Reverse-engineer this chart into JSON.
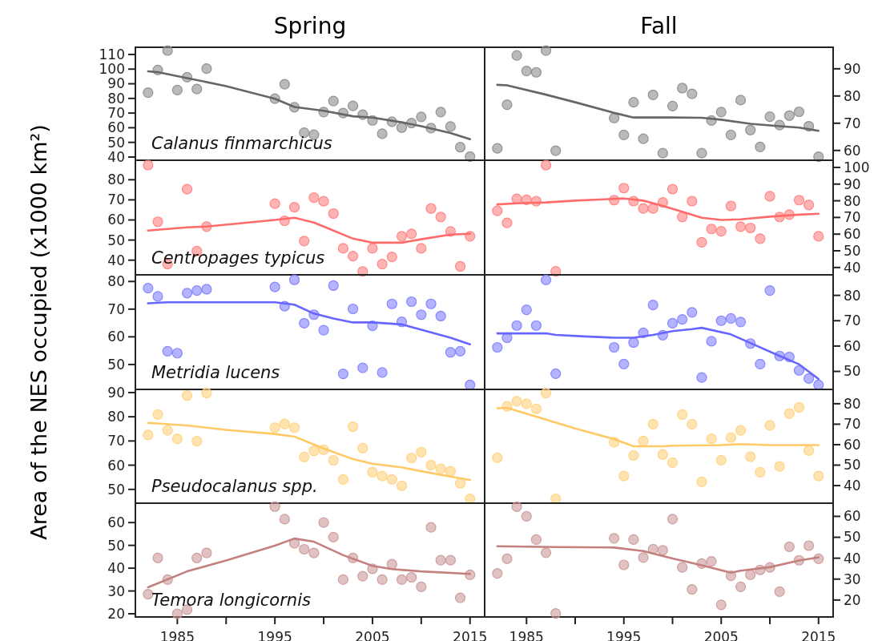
{
  "chart_data": [
    {
      "type": "scatter",
      "title": "Spring",
      "annotations": [
        "Calanus finmarchicus"
      ],
      "xlim": [
        1980.7,
        2016.5
      ],
      "ylim": [
        37.8,
        114.9
      ],
      "yticks": [
        40,
        50,
        60,
        70,
        80,
        90,
        100,
        110
      ],
      "tick_labels": "y",
      "marker": "circle",
      "grid": false,
      "series": [
        {
          "color": "#8c8c8c",
          "x": [
            1982,
            1983,
            1984,
            1985,
            1986,
            1987,
            1988,
            1995,
            1996,
            1997,
            1998,
            1999,
            2000,
            2001,
            2002,
            2003,
            2004,
            2005,
            2006,
            2007,
            2008,
            2009,
            2010,
            2011,
            2012,
            2013,
            2014,
            2015
          ],
          "values": [
            83.9,
            99.4,
            112.7,
            85.7,
            94.5,
            86.4,
            100.3,
            79.8,
            89.7,
            74.0,
            56.6,
            55.2,
            70.7,
            78.2,
            70.0,
            74.9,
            68.9,
            65.0,
            55.9,
            64.1,
            60.1,
            63.2,
            67.4,
            59.7,
            70.7,
            60.8,
            46.7,
            40.3
          ]
        },
        {
          "type": "line",
          "marker": "none",
          "color": "#666666",
          "x": [
            1982,
            1983,
            1986,
            1990,
            1995,
            1997,
            2000,
            2003,
            2005,
            2008,
            2010,
            2013,
            2015
          ],
          "values": [
            98.5,
            97.9,
            93.9,
            88.4,
            79.8,
            74.2,
            71.6,
            67.8,
            66.9,
            63.7,
            61.0,
            56.4,
            52.2
          ]
        }
      ]
    },
    {
      "type": "scatter",
      "title": "Fall",
      "xlim": [
        1980.7,
        2016.5
      ],
      "ylim": [
        56.4,
        97.9
      ],
      "yticks": [
        60,
        70,
        80,
        90
      ],
      "tick_labels": "y",
      "marker": "circle",
      "grid": false,
      "series": [
        {
          "color": "#8c8c8c",
          "x": [
            1982,
            1983,
            1984,
            1985,
            1986,
            1987,
            1988,
            1994,
            1995,
            1996,
            1997,
            1998,
            1999,
            2000,
            2001,
            2002,
            2003,
            2004,
            2005,
            2006,
            2007,
            2008,
            2009,
            2010,
            2011,
            2012,
            2013,
            2014,
            2015
          ],
          "values": [
            60.8,
            76.8,
            94.9,
            89.2,
            88.7,
            96.7,
            59.9,
            71.9,
            65.7,
            77.7,
            64.3,
            80.4,
            59.0,
            76.3,
            82.9,
            80.8,
            59.0,
            71.0,
            74.1,
            65.7,
            78.5,
            67.5,
            61.3,
            72.4,
            69.3,
            72.8,
            74.2,
            68.9,
            57.7
          ]
        },
        {
          "type": "line",
          "marker": "none",
          "color": "#666666",
          "x": [
            1982,
            1983,
            1987,
            1990,
            1994,
            1996,
            2000,
            2003,
            2005,
            2008,
            2011,
            2013,
            2015
          ],
          "values": [
            84.1,
            83.9,
            80.5,
            77.7,
            73.8,
            72.1,
            72.1,
            72.0,
            71.3,
            69.8,
            68.9,
            68.4,
            67.2
          ]
        }
      ]
    },
    {
      "type": "scatter",
      "annotations": [
        "Centropages typicus"
      ],
      "xlim": [
        1980.7,
        2016.5
      ],
      "ylim": [
        32.7,
        89.7
      ],
      "yticks": [
        40,
        50,
        60,
        70,
        80
      ],
      "tick_labels": "y",
      "marker": "circle",
      "grid": false,
      "series": [
        {
          "color": "#ff8080",
          "x": [
            1982,
            1983,
            1984,
            1986,
            1987,
            1988,
            1995,
            1996,
            1997,
            1998,
            1999,
            2000,
            2001,
            2002,
            2003,
            2004,
            2005,
            2006,
            2007,
            2008,
            2009,
            2010,
            2011,
            2012,
            2013,
            2014,
            2015
          ],
          "values": [
            87.3,
            59.1,
            38.0,
            75.3,
            44.5,
            56.7,
            68.1,
            59.6,
            66.3,
            49.5,
            71.1,
            69.3,
            63.2,
            45.9,
            42.0,
            34.4,
            45.9,
            38.0,
            41.6,
            51.9,
            53.1,
            45.9,
            65.7,
            61.5,
            54.3,
            36.9,
            51.9
          ]
        },
        {
          "type": "line",
          "marker": "none",
          "color": "#ff6b6b",
          "x": [
            1982,
            1986,
            1988,
            1995,
            1997,
            1999,
            2001,
            2003,
            2005,
            2008,
            2010,
            2013,
            2015
          ],
          "values": [
            54.7,
            56.3,
            56.7,
            60.0,
            61.1,
            58.7,
            54.7,
            50.7,
            48.7,
            48.7,
            50.4,
            52.7,
            53.1
          ]
        }
      ]
    },
    {
      "type": "scatter",
      "xlim": [
        1980.7,
        2016.5
      ],
      "ylim": [
        35.6,
        104.3
      ],
      "yticks": [
        40,
        50,
        60,
        70,
        80,
        90,
        100
      ],
      "tick_labels": "y",
      "marker": "circle",
      "grid": false,
      "series": [
        {
          "color": "#ff8080",
          "x": [
            1982,
            1983,
            1984,
            1985,
            1986,
            1987,
            1988,
            1994,
            1995,
            1996,
            1997,
            1998,
            1999,
            2000,
            2001,
            2002,
            2003,
            2004,
            2005,
            2006,
            2007,
            2008,
            2009,
            2010,
            2011,
            2012,
            2013,
            2014,
            2015
          ],
          "values": [
            74.0,
            66.8,
            81.2,
            80.6,
            79.8,
            101.4,
            37.7,
            80.4,
            87.6,
            79.8,
            75.4,
            75.4,
            79.0,
            87.0,
            70.3,
            79.8,
            55.1,
            63.1,
            61.7,
            76.9,
            64.5,
            63.7,
            57.3,
            82.7,
            70.3,
            71.7,
            80.4,
            77.5,
            58.7
          ]
        },
        {
          "type": "line",
          "marker": "none",
          "color": "#ff6b6b",
          "x": [
            1982,
            1984,
            1987,
            1990,
            1993,
            1995,
            1997,
            1999,
            2001,
            2003,
            2005,
            2007,
            2010,
            2013,
            2015
          ],
          "values": [
            77.8,
            78.5,
            79.0,
            80.1,
            80.9,
            81.4,
            80.1,
            76.9,
            73.4,
            69.8,
            68.5,
            68.9,
            70.5,
            71.7,
            72.2
          ]
        }
      ]
    },
    {
      "type": "scatter",
      "ylabel": "Area of the NES occupied  (x1000 km²)",
      "annotations": [
        "Metridia lucens"
      ],
      "xlim": [
        1980.7,
        2016.5
      ],
      "ylim": [
        41.0,
        82.4
      ],
      "yticks": [
        50,
        60,
        70,
        80
      ],
      "tick_labels": "y",
      "marker": "circle",
      "grid": false,
      "series": [
        {
          "color": "#8080ff",
          "x": [
            1982,
            1983,
            1984,
            1985,
            1986,
            1987,
            1988,
            1995,
            1996,
            1997,
            1998,
            1999,
            2000,
            2001,
            2002,
            2003,
            2004,
            2005,
            2006,
            2007,
            2008,
            2009,
            2010,
            2011,
            2012,
            2013,
            2014,
            2015
          ],
          "values": [
            77.6,
            74.6,
            54.8,
            54.1,
            75.8,
            76.7,
            77.2,
            78.0,
            71.1,
            80.6,
            64.9,
            68.0,
            62.4,
            78.5,
            46.6,
            70.1,
            48.8,
            64.0,
            47.1,
            71.9,
            65.4,
            72.7,
            68.0,
            71.9,
            67.5,
            54.4,
            54.8,
            42.6
          ]
        },
        {
          "type": "line",
          "marker": "none",
          "color": "#6666ff",
          "x": [
            1982,
            1984,
            1990,
            1995,
            1997,
            1999,
            2001,
            2003,
            2005,
            2008,
            2010,
            2013,
            2015
          ],
          "values": [
            72.1,
            72.5,
            72.5,
            72.5,
            71.6,
            68.4,
            66.6,
            65.2,
            65.2,
            64.5,
            62.6,
            59.7,
            57.3
          ]
        }
      ]
    },
    {
      "type": "scatter",
      "xlim": [
        1980.7,
        2016.5
      ],
      "ylim": [
        42.9,
        88.1
      ],
      "yticks": [
        50,
        60,
        70,
        80
      ],
      "tick_labels": "y",
      "marker": "circle",
      "grid": false,
      "series": [
        {
          "color": "#8080ff",
          "x": [
            1982,
            1983,
            1984,
            1985,
            1986,
            1987,
            1988,
            1994,
            1995,
            1996,
            1997,
            1998,
            1999,
            2000,
            2001,
            2002,
            2003,
            2004,
            2005,
            2006,
            2007,
            2008,
            2009,
            2010,
            2011,
            2012,
            2013,
            2014,
            2015
          ],
          "values": [
            59.5,
            63.3,
            68.1,
            74.3,
            68.1,
            86.1,
            49.1,
            59.5,
            52.9,
            61.4,
            65.2,
            76.2,
            64.3,
            69.0,
            70.5,
            73.3,
            47.6,
            61.9,
            70.0,
            70.9,
            69.5,
            61.0,
            52.9,
            81.9,
            56.1,
            55.7,
            50.4,
            47.2,
            44.7
          ]
        },
        {
          "type": "line",
          "marker": "none",
          "color": "#6666ff",
          "x": [
            1982,
            1987,
            1988,
            1991,
            1994,
            1996,
            1998,
            2000,
            2002,
            2003,
            2006,
            2008,
            2011,
            2013,
            2015
          ],
          "values": [
            65.0,
            65.0,
            64.4,
            63.8,
            63.3,
            63.3,
            64.4,
            65.9,
            66.7,
            67.2,
            64.6,
            61.2,
            56.1,
            52.8,
            47.0
          ]
        }
      ]
    },
    {
      "type": "scatter",
      "annotations": [
        "Pseudocalanus spp."
      ],
      "xlim": [
        1980.7,
        2016.5
      ],
      "ylim": [
        44.3,
        91.3
      ],
      "yticks": [
        50,
        60,
        70,
        80,
        90
      ],
      "tick_labels": "y",
      "marker": "circle",
      "grid": false,
      "series": [
        {
          "color": "#ffd27f",
          "x": [
            1982,
            1983,
            1984,
            1985,
            1986,
            1987,
            1988,
            1995,
            1996,
            1997,
            1998,
            1999,
            2000,
            2001,
            2002,
            2003,
            2004,
            2005,
            2006,
            2007,
            2008,
            2009,
            2010,
            2011,
            2012,
            2013,
            2014,
            2015
          ],
          "values": [
            72.5,
            80.9,
            74.4,
            70.9,
            88.8,
            69.9,
            89.8,
            75.5,
            77.0,
            75.5,
            63.4,
            65.9,
            66.4,
            62.0,
            54.1,
            75.9,
            67.0,
            57.1,
            55.5,
            54.1,
            51.5,
            63.0,
            65.4,
            60.0,
            58.5,
            57.5,
            52.5,
            46.1
          ]
        },
        {
          "type": "line",
          "marker": "none",
          "color": "#ffc966",
          "x": [
            1982,
            1986,
            1990,
            1995,
            1997,
            2000,
            2003,
            2005,
            2008,
            2010,
            2013,
            2015
          ],
          "values": [
            77.5,
            76.4,
            74.6,
            72.9,
            71.8,
            66.9,
            62.5,
            60.6,
            59.1,
            57.5,
            55.3,
            53.9
          ]
        }
      ]
    },
    {
      "type": "scatter",
      "xlim": [
        1980.7,
        2016.5
      ],
      "ylim": [
        31.4,
        87.0
      ],
      "yticks": [
        40,
        50,
        60,
        70,
        80
      ],
      "tick_labels": "y",
      "marker": "circle",
      "grid": false,
      "series": [
        {
          "color": "#ffd27f",
          "x": [
            1982,
            1983,
            1984,
            1985,
            1986,
            1987,
            1988,
            1994,
            1995,
            1996,
            1997,
            1998,
            1999,
            2000,
            2001,
            2002,
            2003,
            2004,
            2005,
            2006,
            2007,
            2008,
            2009,
            2010,
            2011,
            2012,
            2013,
            2014,
            2015
          ],
          "values": [
            53.6,
            78.7,
            81.2,
            80.0,
            77.5,
            85.2,
            33.5,
            61.2,
            44.7,
            54.7,
            61.8,
            70.0,
            55.2,
            51.2,
            74.7,
            70.0,
            41.8,
            62.9,
            52.4,
            63.5,
            67.0,
            54.1,
            46.5,
            69.4,
            49.4,
            75.2,
            78.2,
            57.1,
            44.7
          ]
        },
        {
          "type": "line",
          "marker": "none",
          "color": "#ffc966",
          "x": [
            1982,
            1983,
            1986,
            1990,
            1994,
            1996,
            1999,
            2000,
            2005,
            2007,
            2010,
            2015
          ],
          "values": [
            77.8,
            78.0,
            73.7,
            67.9,
            62.7,
            59.2,
            59.2,
            59.5,
            59.8,
            60.3,
            59.8,
            59.8
          ]
        }
      ]
    },
    {
      "type": "scatter",
      "annotations": [
        "Temora longicornis"
      ],
      "xlim": [
        1980.7,
        2016.5
      ],
      "ylim": [
        18.6,
        68.5
      ],
      "yticks": [
        20,
        30,
        40,
        50,
        60
      ],
      "xticks": [
        1985,
        {
          "value": 1990,
          "label": null
        },
        1995,
        {
          "value": 2000,
          "label": null
        },
        2005,
        {
          "value": 2010,
          "label": null
        },
        2015
      ],
      "marker": "circle",
      "grid": false,
      "series": [
        {
          "color": "#cc9999",
          "x": [
            1982,
            1983,
            1984,
            1985,
            1986,
            1987,
            1988,
            1995,
            1996,
            1997,
            1998,
            1999,
            2000,
            2001,
            2002,
            2003,
            2004,
            2005,
            2006,
            2007,
            2008,
            2009,
            2010,
            2011,
            2012,
            2013,
            2014,
            2015
          ],
          "values": [
            28.6,
            44.5,
            35.0,
            20.0,
            21.8,
            44.5,
            46.7,
            67.0,
            61.5,
            50.9,
            48.3,
            46.7,
            60.0,
            53.6,
            35.0,
            44.5,
            36.5,
            39.7,
            35.0,
            41.8,
            35.0,
            36.0,
            31.8,
            57.9,
            43.5,
            43.5,
            27.0,
            37.1
          ]
        },
        {
          "type": "line",
          "marker": "none",
          "color": "#c47f7f",
          "x": [
            1982,
            1986,
            1990,
            1995,
            1997,
            1999,
            2002,
            2005,
            2007,
            2010,
            2015
          ],
          "values": [
            31.6,
            38.6,
            43.4,
            49.9,
            53.0,
            51.6,
            45.7,
            41.0,
            39.6,
            38.6,
            37.5
          ]
        }
      ]
    },
    {
      "type": "scatter",
      "xlim": [
        1980.7,
        2016.5
      ],
      "ylim": [
        11.9,
        66.3
      ],
      "yticks": [
        20,
        30,
        40,
        50,
        60
      ],
      "xticks": [
        1985,
        {
          "value": 1990,
          "label": null
        },
        1995,
        {
          "value": 2000,
          "label": null
        },
        2005,
        {
          "value": 2010,
          "label": null
        },
        2015
      ],
      "marker": "circle",
      "grid": false,
      "series": [
        {
          "color": "#cc9999",
          "x": [
            1982,
            1983,
            1984,
            1985,
            1986,
            1987,
            1988,
            1994,
            1995,
            1996,
            1997,
            1998,
            1999,
            2000,
            2001,
            2002,
            2003,
            2004,
            2005,
            2006,
            2007,
            2008,
            2009,
            2010,
            2011,
            2012,
            2013,
            2014,
            2015
          ],
          "values": [
            32.7,
            39.7,
            64.6,
            60.0,
            48.9,
            42.6,
            13.6,
            49.5,
            36.8,
            48.9,
            40.3,
            44.3,
            43.8,
            58.7,
            35.6,
            25.1,
            37.4,
            38.5,
            17.7,
            31.6,
            26.3,
            32.1,
            34.4,
            35.6,
            24.0,
            45.5,
            39.0,
            46.0,
            39.7
          ]
        },
        {
          "type": "line",
          "marker": "none",
          "color": "#c47f7f",
          "x": [
            1982,
            1988,
            1994,
            1997,
            2000,
            2003,
            2006,
            2007,
            2010,
            2013,
            2015
          ],
          "values": [
            45.7,
            45.3,
            45.1,
            43.4,
            39.9,
            36.6,
            33.1,
            34.0,
            35.7,
            38.9,
            40.4
          ]
        }
      ]
    }
  ]
}
